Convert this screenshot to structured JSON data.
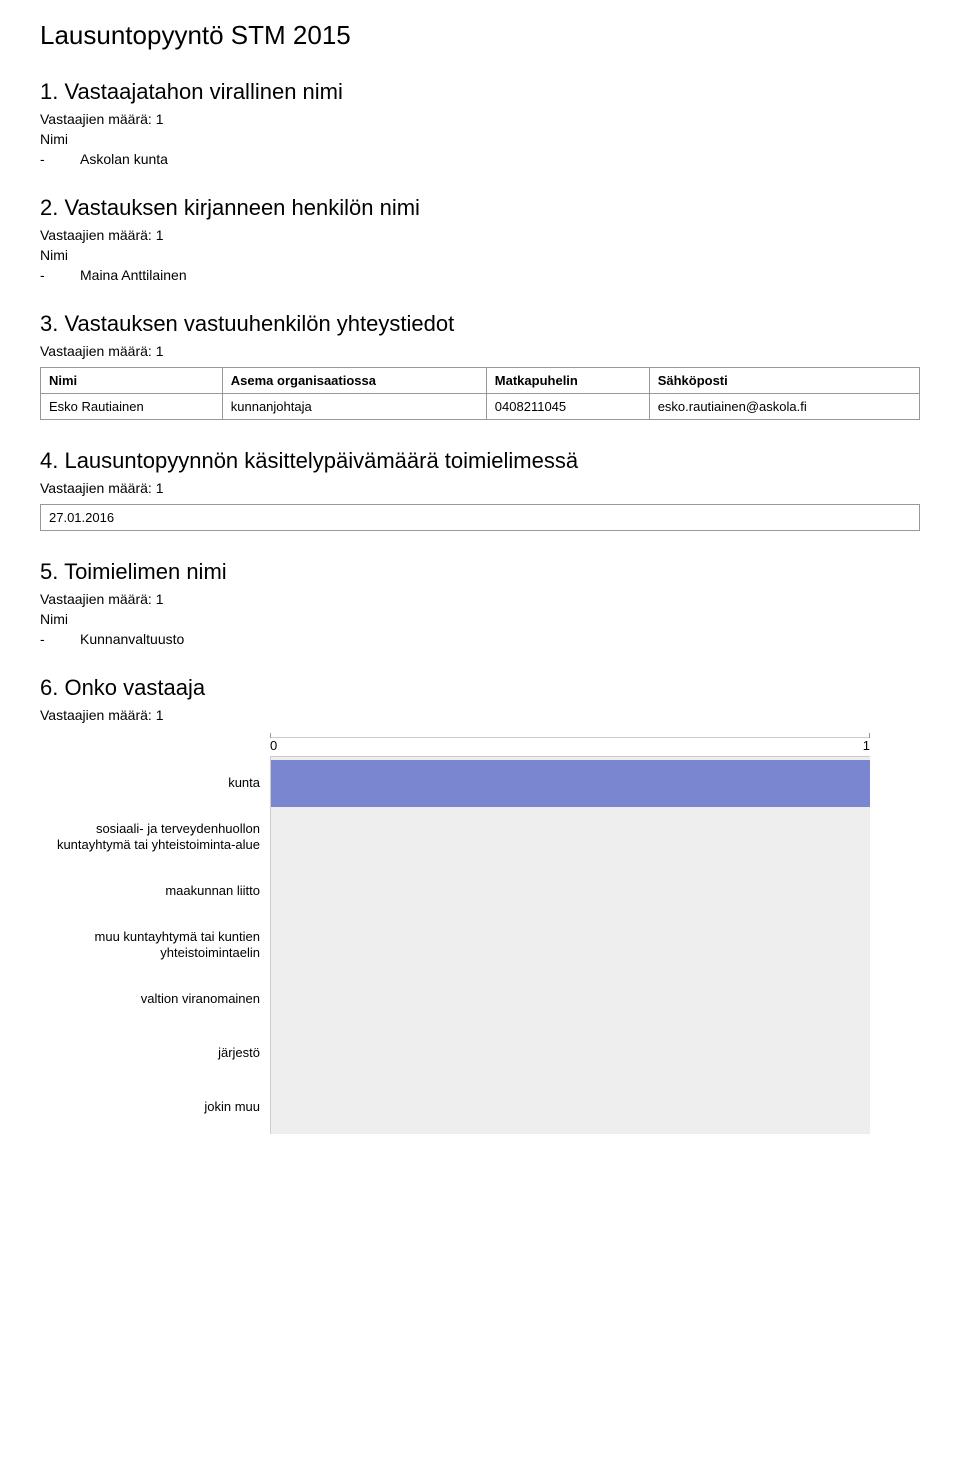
{
  "title": "Lausuntopyyntö STM 2015",
  "count_label": "Vastaajien määrä: 1",
  "nimi_label": "Nimi",
  "sections": {
    "s1": {
      "heading": "1. Vastaajatahon virallinen nimi",
      "value": "Askolan kunta"
    },
    "s2": {
      "heading": "2. Vastauksen kirjanneen henkilön nimi",
      "value": "Maina Anttilainen"
    },
    "s3": {
      "heading": "3. Vastauksen vastuuhenkilön yhteystiedot",
      "columns": [
        "Nimi",
        "Asema organisaatiossa",
        "Matkapuhelin",
        "Sähköposti"
      ],
      "row": [
        "Esko Rautiainen",
        "kunnanjohtaja",
        "0408211045",
        "esko.rautiainen@askola.fi"
      ]
    },
    "s4": {
      "heading": "4. Lausuntopyynnön käsittelypäivämäärä toimielimessä",
      "value": "27.01.2016"
    },
    "s5": {
      "heading": "5. Toimielimen nimi",
      "value": "Kunnanvaltuusto"
    },
    "s6": {
      "heading": "6. Onko vastaaja",
      "axis": {
        "min": 0,
        "max": 1
      },
      "bar_color": "#7b86d1",
      "plot_bg": "#eeeeee",
      "categories": [
        {
          "label": "kunta",
          "value": 1
        },
        {
          "label": "sosiaali- ja terveydenhuollon kuntayhtymä tai yhteistoiminta-alue",
          "value": 0
        },
        {
          "label": "maakunnan liitto",
          "value": 0
        },
        {
          "label": "muu kuntayhtymä tai kuntien yhteistoimintaelin",
          "value": 0
        },
        {
          "label": "valtion viranomainen",
          "value": 0
        },
        {
          "label": "järjestö",
          "value": 0
        },
        {
          "label": "jokin muu",
          "value": 0
        }
      ]
    }
  }
}
